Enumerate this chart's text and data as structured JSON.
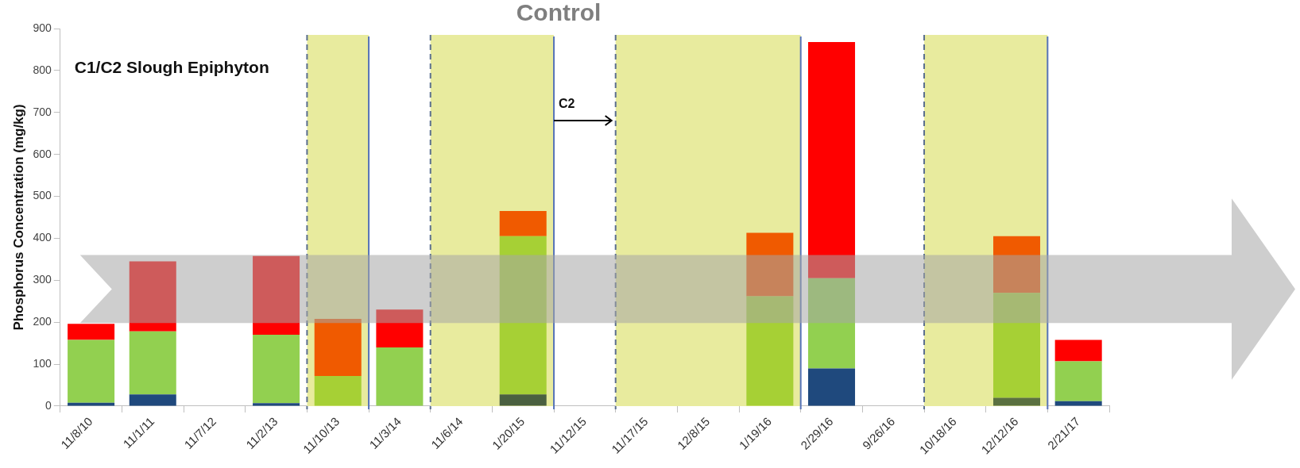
{
  "chart_data": {
    "type": "bar",
    "title": "Control",
    "ylabel": "Phosphorus Concentration (mg/kg)",
    "stacked": true,
    "categories": [
      "11/8/10",
      "11/1/11",
      "11/7/12",
      "11/2/13",
      "11/10/13",
      "11/3/14",
      "11/6/14",
      "1/20/15",
      "11/12/15",
      "11/17/15",
      "12/8/15",
      "1/19/16",
      "2/29/16",
      "9/26/16",
      "10/18/16",
      "12/12/16",
      "2/21/17"
    ],
    "series": [
      {
        "colors": [
          "#1f497d",
          "#1f497d",
          "#1f497d",
          "#1f497d",
          "#1f497d",
          "#1f497d",
          "#1f497d",
          "#4a6040",
          "#1f497d",
          "#1f497d",
          "#1f497d",
          "#1f497d",
          "#1f497d",
          "#1f497d",
          "#1f497d",
          "#5a7040",
          "#1f497d"
        ],
        "values": [
          8,
          28,
          null,
          7,
          0,
          0,
          null,
          28,
          null,
          null,
          null,
          0,
          90,
          null,
          null,
          20,
          12
        ]
      },
      {
        "colors": [
          "#92d050",
          "#92d050",
          "#92d050",
          "#92d050",
          "#a6d035",
          "#92d050",
          "#92d050",
          "#a6d035",
          "#92d050",
          "#92d050",
          "#92d050",
          "#a6d035",
          "#92d050",
          "#92d050",
          "#92d050",
          "#a6d035",
          "#92d050"
        ],
        "values": [
          150,
          150,
          null,
          163,
          72,
          140,
          null,
          377,
          null,
          null,
          null,
          262,
          215,
          null,
          null,
          250,
          95
        ]
      },
      {
        "colors": [
          "#ff0000",
          "#ff0000",
          "#ff0000",
          "#ff0000",
          "#f05a00",
          "#ff0000",
          "#ff0000",
          "#f05a00",
          "#ff0000",
          "#ff0000",
          "#ff0000",
          "#f05a00",
          "#ff0000",
          "#ff0000",
          "#ff0000",
          "#f05a00",
          "#ff0000"
        ],
        "values": [
          38,
          167,
          null,
          188,
          136,
          90,
          null,
          60,
          null,
          null,
          null,
          151,
          563,
          null,
          null,
          135,
          51
        ]
      }
    ],
    "ylim": [
      0,
      900
    ],
    "yticks": [
      0,
      100,
      200,
      300,
      400,
      500,
      600,
      700,
      800,
      900
    ],
    "bands": [
      {
        "axis": "x",
        "from": "11/10/13",
        "to": "11/10/13",
        "color": "#e8eb9e"
      },
      {
        "axis": "x",
        "from": "11/6/14",
        "to": "1/20/15",
        "color": "#e8eb9e"
      },
      {
        "axis": "x",
        "from": "11/17/15",
        "to": "1/19/16",
        "color": "#e8eb9e"
      },
      {
        "axis": "x",
        "from": "10/18/16",
        "to": "12/12/16",
        "color": "#e8eb9e"
      }
    ],
    "annotations": [
      "C1/C2 Slough Epiphyton",
      "C2"
    ]
  }
}
